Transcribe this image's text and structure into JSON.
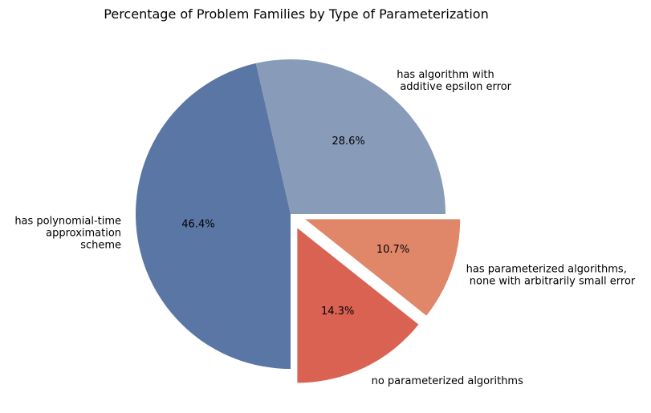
{
  "chart_data": {
    "type": "pie",
    "title": "Percentage of Problem Families by Type of Parameterization",
    "slices": [
      {
        "label_lines": [
          "has algorithm with",
          " additive epsilon error"
        ],
        "value": 28.6,
        "pct_label": "28.6%",
        "color": "#889cba",
        "exploded": false
      },
      {
        "label_lines": [
          "has polynomial-time",
          "approximation",
          "scheme"
        ],
        "value": 46.4,
        "pct_label": "46.4%",
        "color": "#5a76a4",
        "exploded": false
      },
      {
        "label_lines": [
          "no parameterized algorithms"
        ],
        "value": 14.3,
        "pct_label": "14.3%",
        "color": "#d96253",
        "exploded": true
      },
      {
        "label_lines": [
          "has parameterized algorithms,",
          " none with arbitrarily small error"
        ],
        "value": 10.7,
        "pct_label": "10.7%",
        "color": "#e0876a",
        "exploded": true
      }
    ],
    "start_angle_deg": 0,
    "direction": "counterclockwise",
    "legend": "none"
  }
}
